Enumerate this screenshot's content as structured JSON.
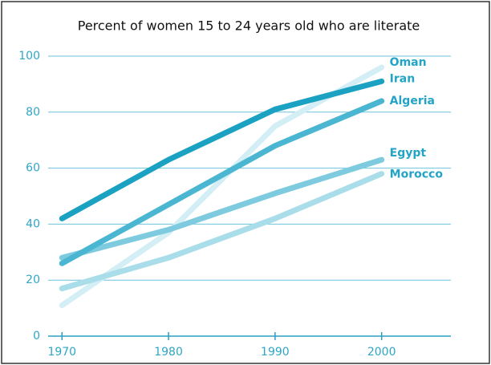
{
  "chart_data": {
    "type": "line",
    "title": "Percent of women 15 to 24 years old who are literate",
    "x": [
      1970,
      1980,
      1990,
      2000
    ],
    "series": [
      {
        "name": "Oman",
        "color": "#d3eef5",
        "values": [
          11,
          37,
          75,
          96
        ]
      },
      {
        "name": "Morocco",
        "color": "#a9dde9",
        "values": [
          17,
          28,
          42,
          58
        ]
      },
      {
        "name": "Egypt",
        "color": "#7ecbdf",
        "values": [
          28,
          38,
          51,
          63
        ]
      },
      {
        "name": "Algeria",
        "color": "#4ab6d2",
        "values": [
          26,
          47,
          68,
          84
        ]
      },
      {
        "name": "Iran",
        "color": "#1ba2c3",
        "values": [
          42,
          63,
          81,
          91
        ]
      }
    ],
    "xlim": [
      1968.7,
      2006.5
    ],
    "xticks": [
      1970,
      1980,
      1990,
      2000
    ],
    "ylim": [
      0,
      100
    ],
    "yticks": [
      0,
      20,
      40,
      60,
      80,
      100
    ],
    "grid": true
  }
}
